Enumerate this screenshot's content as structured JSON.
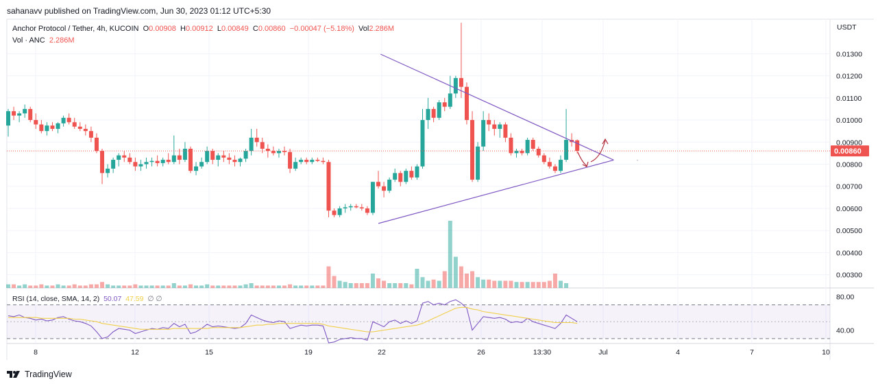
{
  "header": {
    "published": "sahanavv published on TradingView.com, Jun 30, 2023 01:12 UTC+5:30"
  },
  "legend": {
    "symbol": "Anchor Protocol / Tether, 4h, KUCOIN",
    "o_label": "O",
    "o_value": "0.00908",
    "h_label": "H",
    "h_value": "0.00912",
    "l_label": "L",
    "l_value": "0.00849",
    "c_label": "C",
    "c_value": "0.00860",
    "change": "−0.00047 (−5.18%)",
    "vol_label": "Vol",
    "vol_value": "2.286M",
    "vol_line_label": "Vol · ANC",
    "vol_line_value": "2.286M",
    "rsi_label": "RSI (14, close, SMA, 14, 2)",
    "rsi_value": "50.07",
    "rsi_sma_value": "47.59",
    "rsi_extra": "∅ ∅"
  },
  "price_axis": {
    "currency": "USDT",
    "last_price_tag": "0.00860"
  },
  "footer": {
    "brand": "TradingView"
  },
  "colors": {
    "up": "#26a69a",
    "down": "#ef5350",
    "trendline": "#7e57c2",
    "rsi": "#7e57c2",
    "rsi_sma": "#f0cf47",
    "arrow": "#b22d3b"
  },
  "chart_data": [
    {
      "type": "candlestick",
      "title": "Anchor Protocol / Tether, 4h, KUCOIN",
      "y_axis_ticks": [
        "0.01300",
        "0.01200",
        "0.01100",
        "0.01000",
        "0.00900",
        "0.00800",
        "0.00700",
        "0.00600",
        "0.00500",
        "0.00400",
        "0.00300"
      ],
      "x_axis_ticks": [
        "8",
        "12",
        "15",
        "19",
        "22",
        "26",
        "13:30",
        "Jul",
        "4",
        "7",
        "10"
      ],
      "ylim": [
        0.0024,
        0.0145
      ],
      "last_price": 0.0086,
      "candles": [
        [
          0.00975,
          0.0105,
          0.00925,
          0.0104
        ],
        [
          0.0104,
          0.0106,
          0.01,
          0.0102
        ],
        [
          0.0102,
          0.0104,
          0.0099,
          0.0103
        ],
        [
          0.0103,
          0.0107,
          0.0101,
          0.0105
        ],
        [
          0.0105,
          0.0106,
          0.0099,
          0.01
        ],
        [
          0.01,
          0.0103,
          0.0096,
          0.0098
        ],
        [
          0.0098,
          0.01,
          0.0094,
          0.0095
        ],
        [
          0.0095,
          0.0099,
          0.0093,
          0.00975
        ],
        [
          0.00975,
          0.0099,
          0.0095,
          0.0096
        ],
        [
          0.0096,
          0.0099,
          0.0094,
          0.00985
        ],
        [
          0.00985,
          0.0102,
          0.0097,
          0.0101
        ],
        [
          0.0101,
          0.0103,
          0.0098,
          0.0099
        ],
        [
          0.0099,
          0.0101,
          0.0096,
          0.0097
        ],
        [
          0.0097,
          0.0099,
          0.0095,
          0.0096
        ],
        [
          0.0096,
          0.0098,
          0.0093,
          0.0095
        ],
        [
          0.0095,
          0.0097,
          0.009,
          0.0092
        ],
        [
          0.0092,
          0.0094,
          0.0085,
          0.0086
        ],
        [
          0.0086,
          0.0087,
          0.0071,
          0.0076
        ],
        [
          0.0076,
          0.008,
          0.0074,
          0.0078
        ],
        [
          0.0078,
          0.0083,
          0.0076,
          0.0082
        ],
        [
          0.0082,
          0.0085,
          0.0079,
          0.0084
        ],
        [
          0.0084,
          0.0086,
          0.0081,
          0.0083
        ],
        [
          0.0083,
          0.0085,
          0.008,
          0.0081
        ],
        [
          0.0081,
          0.0083,
          0.0077,
          0.0079
        ],
        [
          0.0079,
          0.0082,
          0.0077,
          0.008
        ],
        [
          0.008,
          0.0083,
          0.0078,
          0.0081
        ],
        [
          0.0081,
          0.0083,
          0.0079,
          0.00815
        ],
        [
          0.00815,
          0.0084,
          0.0079,
          0.00805
        ],
        [
          0.00805,
          0.0083,
          0.0079,
          0.0082
        ],
        [
          0.0082,
          0.0085,
          0.008,
          0.0081
        ],
        [
          0.0081,
          0.0093,
          0.008,
          0.0084
        ],
        [
          0.0084,
          0.0087,
          0.008,
          0.0082
        ],
        [
          0.0082,
          0.009,
          0.0081,
          0.0087
        ],
        [
          0.0087,
          0.0088,
          0.0076,
          0.0077
        ],
        [
          0.0077,
          0.0081,
          0.0075,
          0.0079
        ],
        [
          0.0079,
          0.0083,
          0.0078,
          0.0081
        ],
        [
          0.0081,
          0.0088,
          0.008,
          0.0086
        ],
        [
          0.0086,
          0.0087,
          0.008,
          0.0082
        ],
        [
          0.0082,
          0.0085,
          0.0079,
          0.0084
        ],
        [
          0.0084,
          0.0086,
          0.0081,
          0.0083
        ],
        [
          0.0083,
          0.0085,
          0.008,
          0.0082
        ],
        [
          0.0082,
          0.0084,
          0.0079,
          0.0081
        ],
        [
          0.0081,
          0.0083,
          0.0079,
          0.00825
        ],
        [
          0.00825,
          0.0087,
          0.0081,
          0.0086
        ],
        [
          0.0086,
          0.0096,
          0.0084,
          0.0092
        ],
        [
          0.0092,
          0.0096,
          0.0088,
          0.009
        ],
        [
          0.009,
          0.0092,
          0.0085,
          0.0087
        ],
        [
          0.0087,
          0.0089,
          0.0083,
          0.0086
        ],
        [
          0.0086,
          0.0088,
          0.0084,
          0.0085
        ],
        [
          0.0085,
          0.0087,
          0.0083,
          0.0086
        ],
        [
          0.0086,
          0.0088,
          0.0084,
          0.00855
        ],
        [
          0.00855,
          0.0087,
          0.0076,
          0.0078
        ],
        [
          0.0078,
          0.0083,
          0.0077,
          0.0081
        ],
        [
          0.0081,
          0.0083,
          0.008,
          0.0082
        ],
        [
          0.0082,
          0.0083,
          0.008,
          0.0081
        ],
        [
          0.0081,
          0.0083,
          0.008,
          0.0082
        ],
        [
          0.0082,
          0.0083,
          0.0081,
          0.00815
        ],
        [
          0.00815,
          0.0083,
          0.008,
          0.0081
        ],
        [
          0.0081,
          0.0082,
          0.0056,
          0.0059
        ],
        [
          0.0059,
          0.006,
          0.0056,
          0.0057
        ],
        [
          0.0057,
          0.0061,
          0.0056,
          0.006
        ],
        [
          0.006,
          0.0062,
          0.0058,
          0.00605
        ],
        [
          0.00605,
          0.0062,
          0.0059,
          0.0061
        ],
        [
          0.0061,
          0.0062,
          0.006,
          0.00605
        ],
        [
          0.00605,
          0.0062,
          0.0059,
          0.006
        ],
        [
          0.006,
          0.0061,
          0.0057,
          0.0058
        ],
        [
          0.0058,
          0.0072,
          0.0057,
          0.0072
        ],
        [
          0.0072,
          0.0077,
          0.0069,
          0.007
        ],
        [
          0.007,
          0.0072,
          0.0065,
          0.0068
        ],
        [
          0.0068,
          0.0074,
          0.0067,
          0.0073
        ],
        [
          0.0073,
          0.0078,
          0.0072,
          0.0076
        ],
        [
          0.0076,
          0.0077,
          0.007,
          0.0072
        ],
        [
          0.0072,
          0.0078,
          0.0071,
          0.0077
        ],
        [
          0.0077,
          0.0079,
          0.0073,
          0.0074
        ],
        [
          0.0074,
          0.008,
          0.0073,
          0.0079
        ],
        [
          0.0079,
          0.0105,
          0.0078,
          0.01
        ],
        [
          0.01,
          0.011,
          0.0096,
          0.0105
        ],
        [
          0.0105,
          0.0106,
          0.0099,
          0.0101
        ],
        [
          0.0101,
          0.0109,
          0.01,
          0.0108
        ],
        [
          0.0108,
          0.011,
          0.0104,
          0.0106
        ],
        [
          0.0106,
          0.012,
          0.0105,
          0.0112
        ],
        [
          0.0112,
          0.012,
          0.011,
          0.0119
        ],
        [
          0.0119,
          0.0144,
          0.011,
          0.0115
        ],
        [
          0.0115,
          0.0117,
          0.0098,
          0.01
        ],
        [
          0.01,
          0.0104,
          0.0072,
          0.0073
        ],
        [
          0.0073,
          0.009,
          0.0072,
          0.0088
        ],
        [
          0.0088,
          0.0104,
          0.0086,
          0.01
        ],
        [
          0.01,
          0.0103,
          0.0095,
          0.0098
        ],
        [
          0.0098,
          0.01,
          0.0093,
          0.0096
        ],
        [
          0.0096,
          0.0099,
          0.0092,
          0.0098
        ],
        [
          0.0098,
          0.0099,
          0.009,
          0.0092
        ],
        [
          0.0092,
          0.0094,
          0.0084,
          0.0085
        ],
        [
          0.0085,
          0.0087,
          0.0083,
          0.0086
        ],
        [
          0.0086,
          0.0087,
          0.0084,
          0.0085
        ],
        [
          0.0085,
          0.0092,
          0.0084,
          0.0091
        ],
        [
          0.0091,
          0.0092,
          0.0086,
          0.0087
        ],
        [
          0.0087,
          0.0088,
          0.0083,
          0.0084
        ],
        [
          0.0084,
          0.0085,
          0.008,
          0.0081
        ],
        [
          0.0081,
          0.0083,
          0.0078,
          0.0079
        ],
        [
          0.0079,
          0.008,
          0.0076,
          0.0077
        ],
        [
          0.0077,
          0.0084,
          0.0076,
          0.0082
        ],
        [
          0.0082,
          0.0105,
          0.0081,
          0.0091
        ],
        [
          0.0091,
          0.0094,
          0.0088,
          0.009
        ],
        [
          0.00908,
          0.00912,
          0.00849,
          0.0086
        ]
      ],
      "volume": {
        "label": "Vol · ANC",
        "values": [
          3,
          3,
          2,
          3,
          2,
          2,
          3,
          2,
          2,
          3,
          2,
          2,
          3,
          2,
          2,
          3,
          3,
          5,
          3,
          2,
          2,
          2,
          2,
          3,
          2,
          2,
          2,
          2,
          2,
          2,
          4,
          2,
          2,
          3,
          2,
          2,
          3,
          2,
          2,
          2,
          2,
          2,
          2,
          3,
          4,
          2,
          2,
          2,
          2,
          2,
          2,
          3,
          2,
          2,
          2,
          2,
          2,
          2,
          18,
          10,
          6,
          5,
          4,
          4,
          4,
          4,
          12,
          8,
          6,
          4,
          4,
          4,
          4,
          3,
          16,
          9,
          6,
          7,
          6,
          14,
          56,
          26,
          18,
          12,
          14,
          9,
          7,
          7,
          6,
          6,
          6,
          6,
          5,
          5,
          5,
          5,
          5,
          5,
          6,
          12,
          6,
          4
        ]
      }
    },
    {
      "type": "line",
      "title": "RSI (14, close, SMA, 14, 2)",
      "y_axis_ticks": [
        "80.00",
        "40.00"
      ],
      "ylim": [
        25,
        90
      ],
      "series": [
        {
          "name": "RSI",
          "values": [
            57,
            56,
            58,
            55,
            54,
            52,
            53,
            51,
            52,
            55,
            56,
            53,
            51,
            50,
            48,
            45,
            38,
            30,
            32,
            38,
            42,
            41,
            40,
            36,
            38,
            40,
            42,
            41,
            43,
            42,
            48,
            44,
            47,
            36,
            38,
            42,
            47,
            44,
            45,
            44,
            43,
            42,
            43,
            48,
            58,
            55,
            52,
            50,
            49,
            51,
            50,
            42,
            44,
            46,
            45,
            46,
            46,
            45,
            25,
            26,
            29,
            30,
            31,
            30,
            30,
            28,
            50,
            47,
            44,
            50,
            52,
            48,
            51,
            48,
            51,
            72,
            74,
            70,
            72,
            70,
            74,
            76,
            72,
            66,
            40,
            48,
            56,
            55,
            54,
            55,
            53,
            49,
            50,
            49,
            54,
            50,
            48,
            46,
            44,
            42,
            48,
            58,
            54,
            50
          ]
        },
        {
          "name": "SMA",
          "values": [
            55,
            55,
            55,
            55,
            55,
            55,
            54,
            54,
            54,
            54,
            54,
            54,
            53,
            53,
            52,
            51,
            50,
            48,
            47,
            46,
            45,
            44,
            43,
            42,
            41,
            41,
            41,
            41,
            41,
            41,
            42,
            42,
            42,
            42,
            42,
            42,
            42,
            43,
            43,
            43,
            43,
            43,
            43,
            44,
            45,
            46,
            46,
            47,
            47,
            48,
            48,
            48,
            48,
            48,
            48,
            48,
            48,
            47,
            45,
            44,
            43,
            42,
            41,
            40,
            39,
            38,
            38,
            39,
            40,
            41,
            42,
            43,
            44,
            45,
            46,
            48,
            51,
            54,
            57,
            60,
            63,
            66,
            67,
            67,
            65,
            64,
            62,
            61,
            60,
            59,
            58,
            57,
            56,
            55,
            54,
            53,
            52,
            51,
            50,
            49,
            49,
            49,
            49,
            48
          ]
        }
      ],
      "bands": [
        70,
        30
      ]
    }
  ]
}
